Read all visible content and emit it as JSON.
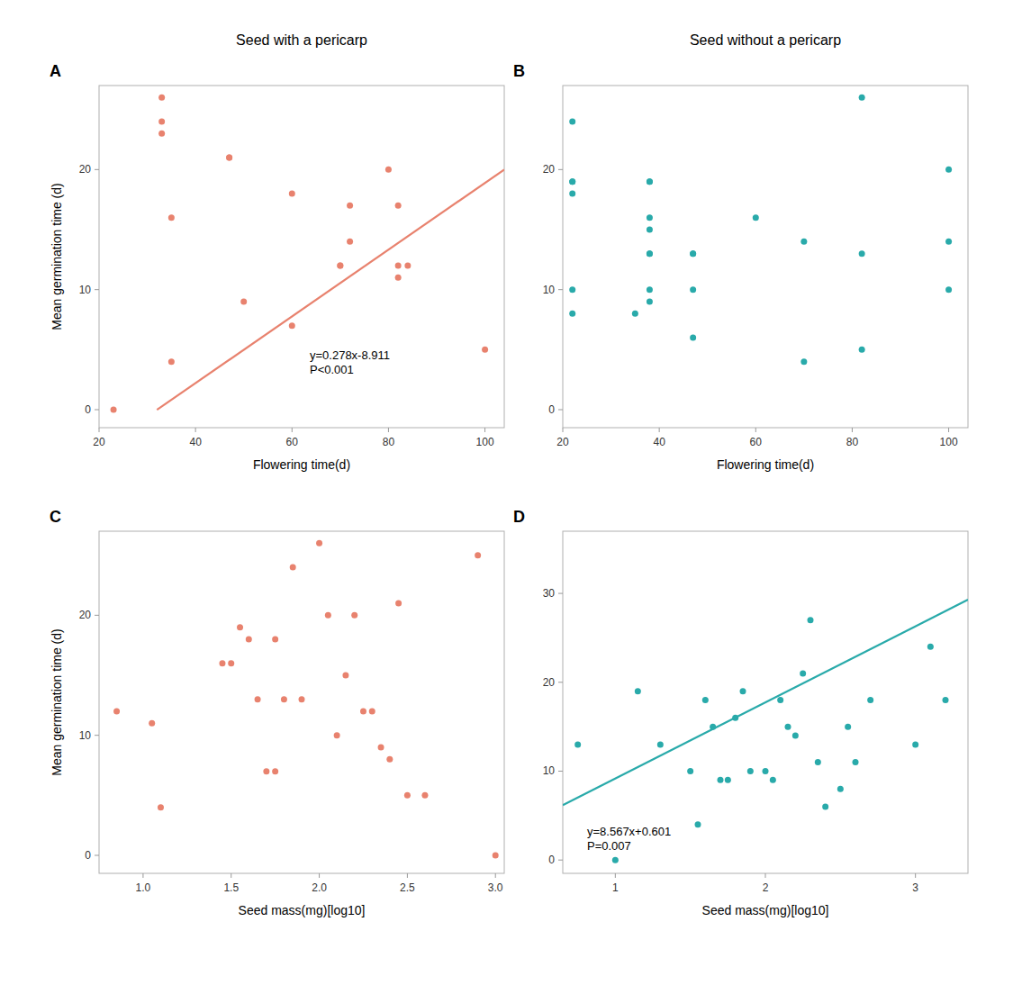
{
  "chart_data": [
    {
      "type": "scatter",
      "title": "Seed with a pericarp",
      "panel_label": "A",
      "xlabel": "Flowering time(d)",
      "ylabel": "Mean germination time (d)",
      "xlim": [
        20,
        104
      ],
      "ylim": [
        -1.5,
        27
      ],
      "xticks": [
        20,
        40,
        60,
        80,
        100
      ],
      "yticks": [
        0,
        10,
        20
      ],
      "series": [
        {
          "type": "scatter",
          "color": "#E8826E",
          "x": [
            23,
            33,
            33,
            33,
            35,
            35,
            47,
            47,
            50,
            60,
            60,
            70,
            70,
            72,
            72,
            80,
            82,
            82,
            82,
            84,
            100
          ],
          "values": [
            0,
            26,
            24,
            23,
            16,
            4,
            21,
            21,
            9,
            18,
            7,
            12,
            12,
            17,
            14,
            20,
            17,
            12,
            11,
            12,
            5
          ]
        },
        {
          "type": "line",
          "color": "#E8826E",
          "x": [
            32.0,
            104.0
          ],
          "values": [
            -0.015,
            20.001
          ]
        }
      ],
      "annotations": [
        "y=0.278x-8.911",
        "P<0.001"
      ]
    },
    {
      "type": "scatter",
      "title": "Seed without a pericarp",
      "panel_label": "B",
      "xlabel": "Flowering time(d)",
      "xlim": [
        20,
        104
      ],
      "ylim": [
        -1.5,
        27
      ],
      "xticks": [
        20,
        40,
        60,
        80,
        100
      ],
      "yticks": [
        0,
        10,
        20
      ],
      "series": [
        {
          "type": "scatter",
          "color": "#29AAAA",
          "x": [
            22,
            22,
            22,
            22,
            22,
            22,
            35,
            38,
            38,
            38,
            38,
            38,
            38,
            38,
            38,
            47,
            47,
            47,
            47,
            60,
            70,
            70,
            82,
            82,
            82,
            100,
            100,
            100
          ],
          "values": [
            24,
            19,
            19,
            18,
            10,
            8,
            8,
            19,
            19,
            16,
            15,
            13,
            13,
            10,
            9,
            13,
            13,
            10,
            6,
            16,
            14,
            4,
            26,
            13,
            5,
            20,
            14,
            10
          ]
        }
      ]
    },
    {
      "type": "scatter",
      "panel_label": "C",
      "xlabel": "Seed mass(mg)[log10]",
      "ylabel": "Mean germination time (d)",
      "xlim": [
        0.75,
        3.05
      ],
      "ylim": [
        -1.5,
        27
      ],
      "xticks": [
        {
          "value": 1,
          "label": "1.0"
        },
        1.5,
        {
          "value": 2,
          "label": "2.0"
        },
        2.5,
        {
          "value": 3,
          "label": "3.0"
        }
      ],
      "yticks": [
        0,
        10,
        20
      ],
      "series": [
        {
          "type": "scatter",
          "color": "#E8826E",
          "x": [
            0.85,
            1.05,
            1.1,
            1.45,
            1.5,
            1.55,
            1.6,
            1.65,
            1.7,
            1.75,
            1.75,
            1.8,
            1.85,
            1.9,
            2.0,
            2.05,
            2.1,
            2.15,
            2.2,
            2.25,
            2.3,
            2.35,
            2.4,
            2.45,
            2.5,
            2.6,
            2.9,
            3.0
          ],
          "values": [
            12,
            11,
            4,
            16,
            16,
            19,
            18,
            13,
            7,
            7,
            18,
            13,
            24,
            13,
            26,
            20,
            10,
            15,
            20,
            12,
            12,
            9,
            8,
            21,
            5,
            5,
            25,
            0
          ]
        }
      ]
    },
    {
      "type": "scatter",
      "panel_label": "D",
      "xlabel": "Seed mass(mg)[log10]",
      "xlim": [
        0.65,
        3.35
      ],
      "ylim": [
        -1.5,
        37
      ],
      "xticks": [
        1,
        2,
        3
      ],
      "yticks": [
        0,
        10,
        20,
        30
      ],
      "series": [
        {
          "type": "scatter",
          "color": "#29AAAA",
          "x": [
            0.75,
            1.0,
            1.15,
            1.3,
            1.5,
            1.55,
            1.6,
            1.65,
            1.7,
            1.75,
            1.8,
            1.85,
            1.9,
            2.0,
            2.05,
            2.1,
            2.15,
            2.2,
            2.25,
            2.3,
            2.35,
            2.4,
            2.5,
            2.55,
            2.6,
            2.7,
            3.0,
            3.1,
            3.2
          ],
          "values": [
            13,
            0,
            19,
            13,
            10,
            4,
            18,
            15,
            9,
            9,
            16,
            19,
            10,
            10,
            9,
            18,
            15,
            14,
            21,
            27,
            11,
            6,
            8,
            15,
            11,
            18,
            13,
            24,
            18
          ]
        },
        {
          "type": "line",
          "color": "#29AAAA",
          "x": [
            0.65,
            3.35
          ],
          "values": [
            6.16955,
            29.30045
          ]
        }
      ],
      "annotations": [
        "y=8.567x+0.601",
        "P=0.007"
      ]
    }
  ]
}
